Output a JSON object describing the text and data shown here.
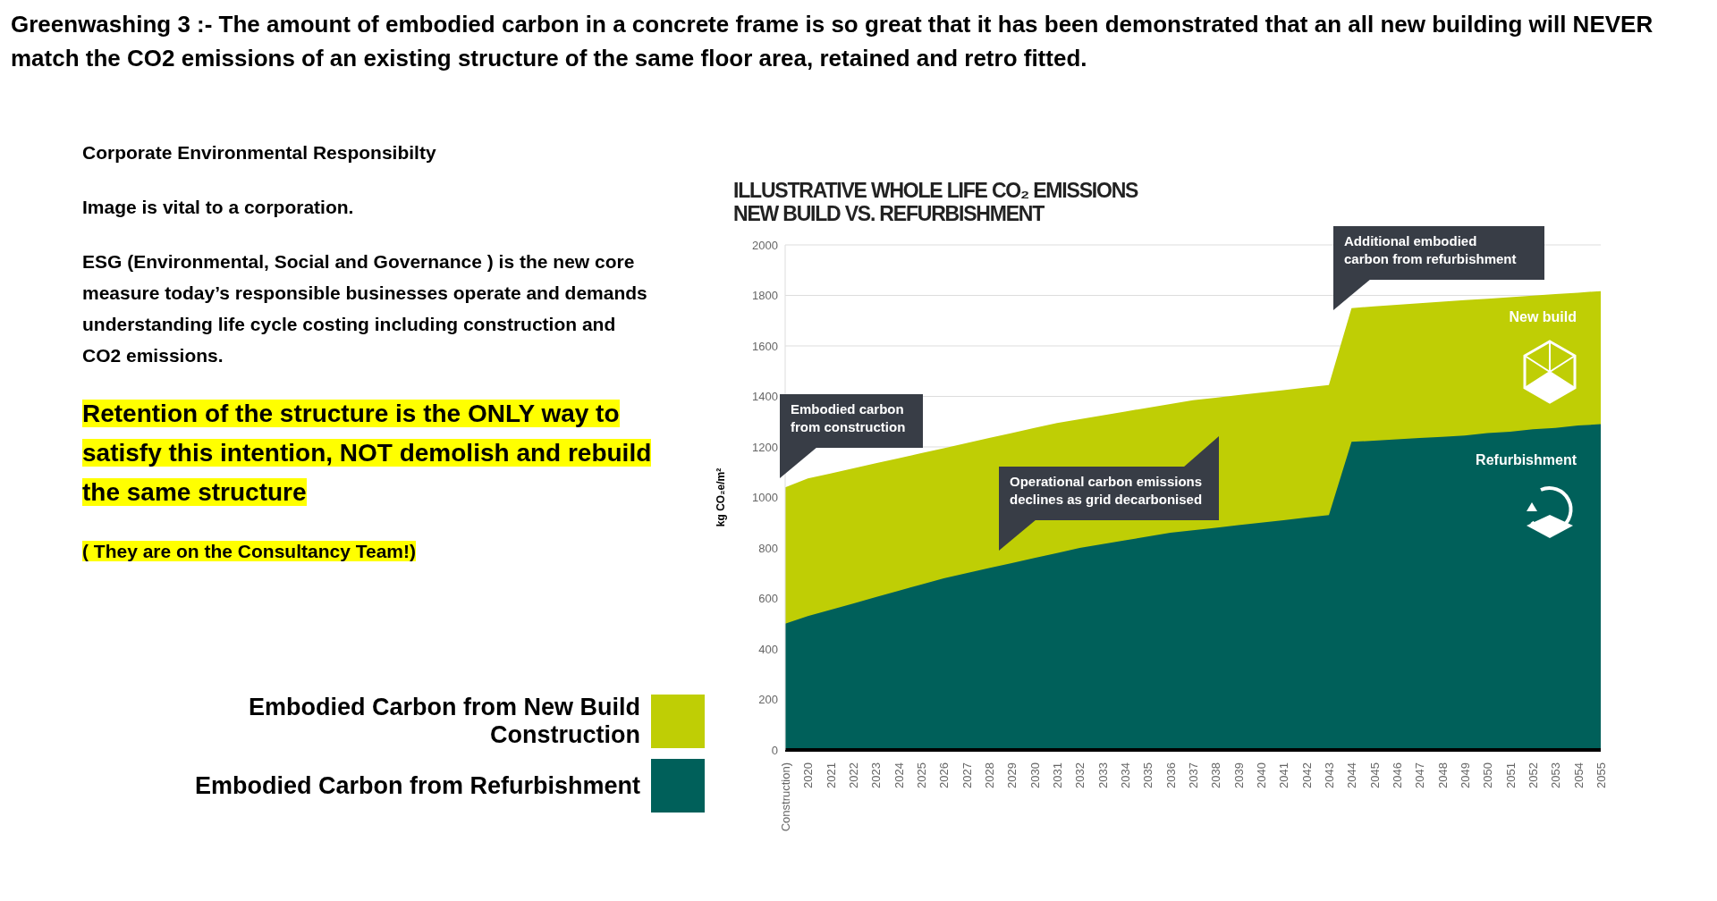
{
  "chart_data": {
    "type": "area",
    "title": "ILLUSTRATIVE WHOLE LIFE CO₂ EMISSIONS",
    "subtitle": "NEW BUILD VS. REFURBISHMENT",
    "ylabel": "kg CO₂e/m²",
    "categories": [
      "Construction)",
      "2020",
      "2021",
      "2022",
      "2023",
      "2024",
      "2025",
      "2026",
      "2027",
      "2028",
      "2029",
      "2030",
      "2031",
      "2032",
      "2033",
      "2034",
      "2035",
      "2036",
      "2037",
      "2038",
      "2039",
      "2040",
      "2041",
      "2042",
      "2043",
      "2044",
      "2045",
      "2046",
      "2047",
      "2048",
      "2049",
      "2050",
      "2051",
      "2052",
      "2053",
      "2054",
      "2055"
    ],
    "series": [
      {
        "name": "Embodied Carbon from New Build Construction",
        "color": "#bfce05",
        "values": [
          1040,
          1075,
          1095,
          1115,
          1135,
          1155,
          1175,
          1195,
          1215,
          1235,
          1255,
          1275,
          1295,
          1310,
          1325,
          1340,
          1355,
          1370,
          1385,
          1395,
          1405,
          1415,
          1425,
          1435,
          1445,
          1750,
          1757,
          1763,
          1769,
          1775,
          1781,
          1787,
          1793,
          1799,
          1805,
          1811,
          1817
        ]
      },
      {
        "name": "Embodied Carbon from Refurbishment",
        "color": "#00605a",
        "values": [
          500,
          530,
          555,
          580,
          605,
          630,
          655,
          680,
          700,
          720,
          740,
          760,
          780,
          800,
          815,
          830,
          845,
          860,
          870,
          880,
          890,
          900,
          910,
          920,
          930,
          1220,
          1225,
          1230,
          1235,
          1240,
          1245,
          1255,
          1260,
          1270,
          1275,
          1285,
          1290
        ]
      }
    ],
    "ylim": [
      0,
      2000
    ],
    "yticks": [
      0,
      200,
      400,
      600,
      800,
      1000,
      1200,
      1400,
      1600,
      1800,
      2000
    ],
    "grid": "y",
    "legend": "left",
    "annotations": [
      "Greenwashing 3 :- The amount of embodied carbon in a concrete frame is so great that it has been demonstrated that an all new building will NEVER match the CO2 emissions of an existing structure of the same floor area, retained and retro fitted.",
      "Corporate Environmental Responsibilty",
      "Image is vital to a corporation.",
      "ESG (Environmental, Social and Governance ) is the new core measure today’s responsible businesses operate and demands understanding life cycle costing including construction and CO2 emissions.",
      "Retention of the structure is the ONLY way to satisfy this intention, NOT demolish and rebuild the same structure",
      "( They are on the Consultancy Team!)",
      "Embodied carbon from construction",
      "Operational carbon emissions declines as grid decarbonised",
      "Additional embodied carbon from refurbishment",
      "New build",
      "Refurbishment"
    ]
  }
}
